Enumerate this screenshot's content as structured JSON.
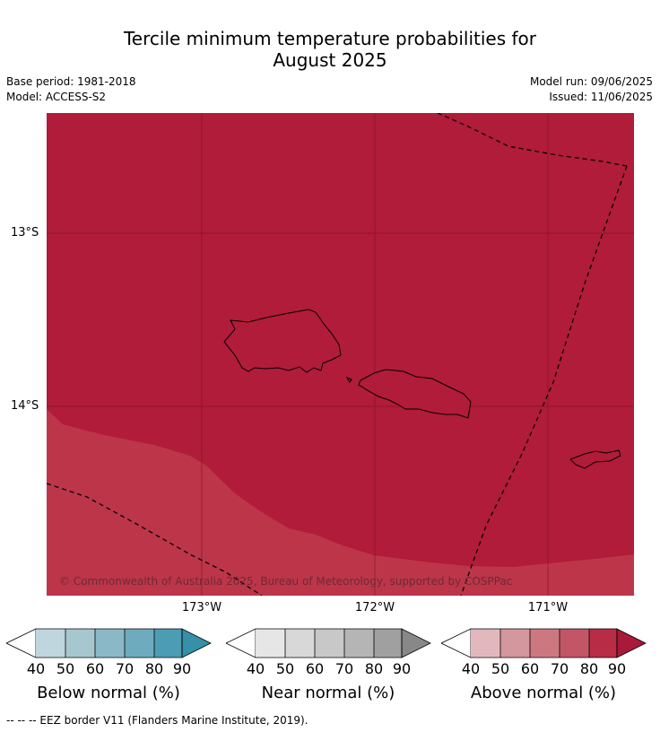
{
  "title_line1": "Tercile minimum temperature probabilities for",
  "title_line2": "August 2025",
  "base_period": "Base period: 1981-2018",
  "model": "Model: ACCESS-S2",
  "model_run": "Model run: 09/06/2025",
  "issued": "Issued: 11/06/2025",
  "lat_labels": [
    "13°S",
    "14°S"
  ],
  "lon_labels": [
    "173°W",
    "172°W",
    "171°W"
  ],
  "copyright": "© Commonwealth of Australia 2025, Bureau of Meteorology, supported by COSPPac",
  "colorbars": [
    {
      "label": "Below normal (%)",
      "ticks": [
        "40",
        "50",
        "60",
        "70",
        "80",
        "90"
      ],
      "colors": [
        "#c0d6de",
        "#a7c7cf",
        "#8bb8c6",
        "#6eabbe",
        "#4c9cb4",
        "#3590a8"
      ]
    },
    {
      "label": "Near normal (%)",
      "ticks": [
        "40",
        "50",
        "60",
        "70",
        "80",
        "90"
      ],
      "colors": [
        "#e6e6e6",
        "#d8d8d8",
        "#c8c8c8",
        "#b5b5b5",
        "#a0a0a0",
        "#888888"
      ]
    },
    {
      "label": "Above normal (%)",
      "ticks": [
        "40",
        "50",
        "60",
        "70",
        "80",
        "90"
      ],
      "colors": [
        "#e2b8be",
        "#d4979e",
        "#cd7880",
        "#c35666",
        "#b82c45",
        "#a8193a"
      ]
    }
  ],
  "map_colors": {
    "above_80_90": "#b01c39",
    "above_70_80": "#bc3549"
  },
  "footer": "--  --  -- EEZ border V11 (Flanders Marine Institute, 2019)."
}
